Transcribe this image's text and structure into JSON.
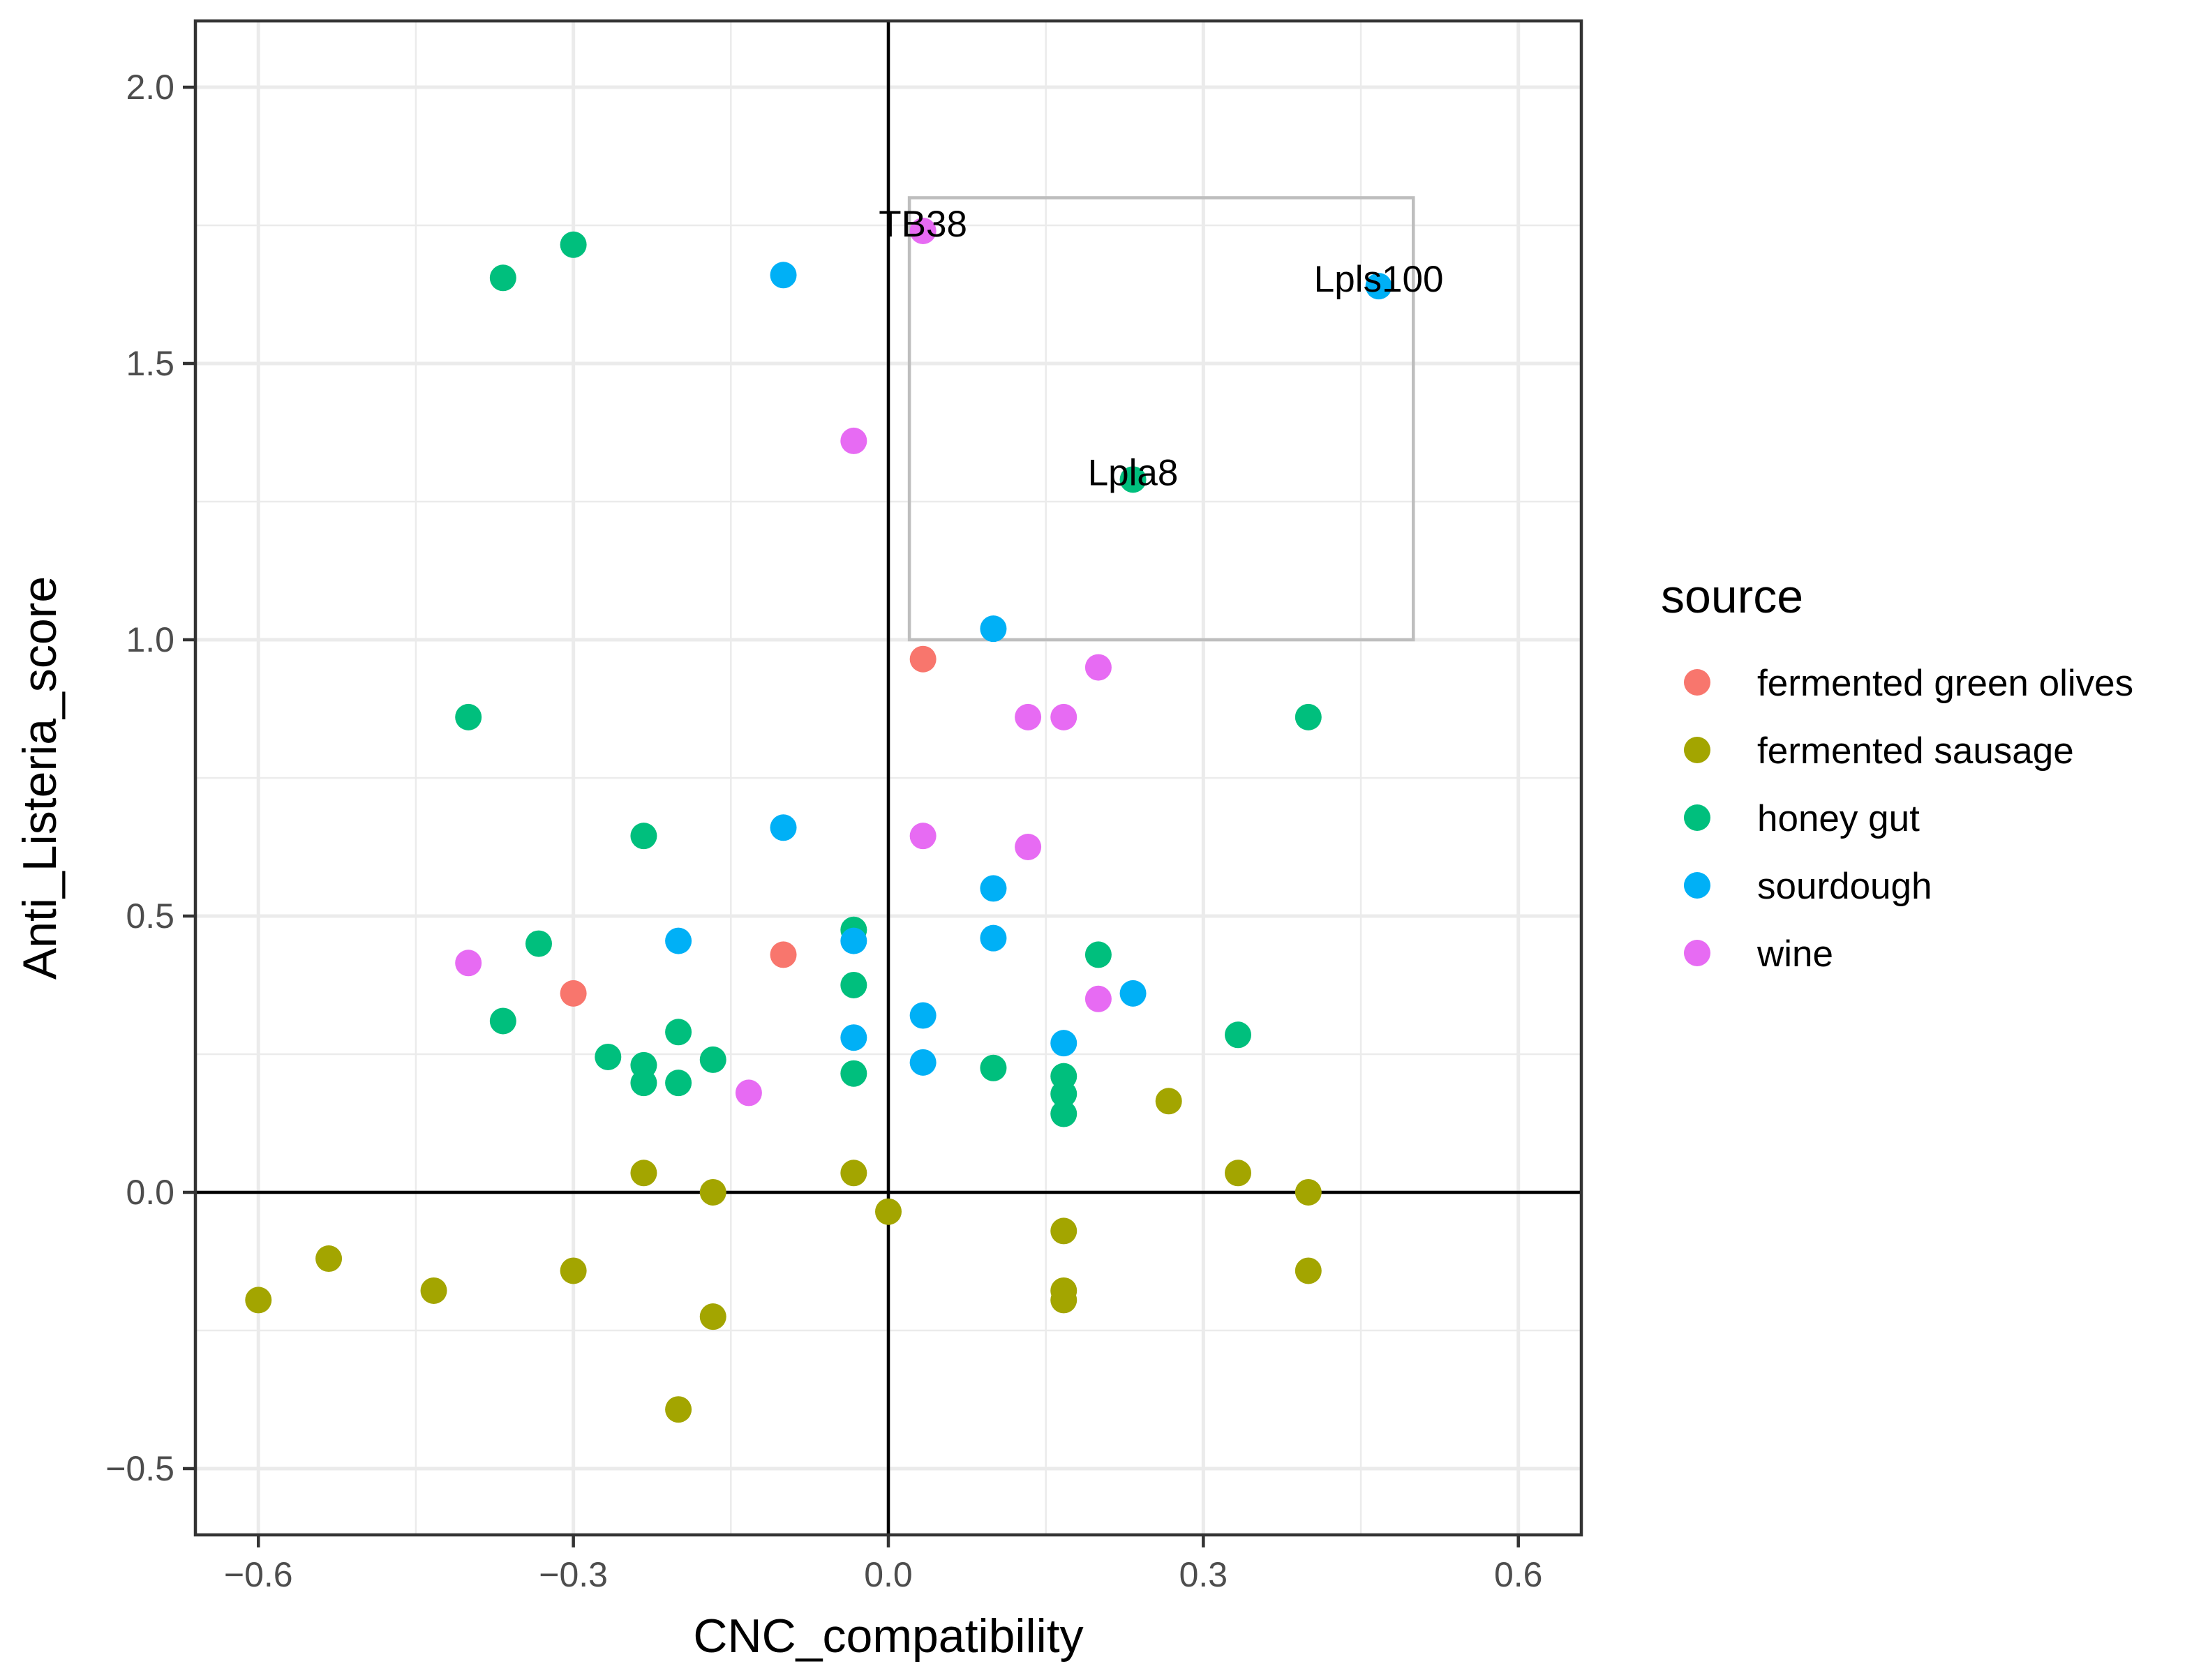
{
  "chart_data": {
    "type": "scatter",
    "xlabel": "CNC_compatibility",
    "ylabel": "Anti_Listeria_score",
    "xlim": [
      -0.66,
      0.66
    ],
    "ylim": [
      -0.62,
      2.12
    ],
    "xticks": [
      -0.6,
      -0.3,
      0.0,
      0.3,
      0.6
    ],
    "xtick_labels": [
      "−0.6",
      "−0.3",
      "0.0",
      "0.3",
      "0.6"
    ],
    "yticks": [
      -0.5,
      0.0,
      0.5,
      1.0,
      1.5,
      2.0
    ],
    "ytick_labels": [
      "−0.5",
      "0.0",
      "0.5",
      "1.0",
      "1.5",
      "2.0"
    ],
    "grid": true,
    "reference_lines": {
      "x": 0,
      "y": 0
    },
    "highlight_box": {
      "x": [
        0.02,
        0.5
      ],
      "y": [
        1.0,
        1.8
      ]
    },
    "legend": {
      "title": "source",
      "position": "right"
    },
    "series": [
      {
        "name": "fermented green olives",
        "color": "#F8766D",
        "points": [
          [
            -0.3,
            0.36
          ],
          [
            -0.1,
            0.43
          ],
          [
            0.033,
            0.965
          ]
        ]
      },
      {
        "name": "fermented sausage",
        "color": "#A3A500",
        "points": [
          [
            -0.6,
            -0.195
          ],
          [
            -0.533,
            -0.12
          ],
          [
            -0.433,
            -0.178
          ],
          [
            -0.3,
            -0.142
          ],
          [
            -0.233,
            0.035
          ],
          [
            -0.2,
            -0.393
          ],
          [
            -0.167,
            0.0
          ],
          [
            -0.167,
            -0.225
          ],
          [
            -0.033,
            0.035
          ],
          [
            0.0,
            -0.035
          ],
          [
            0.167,
            -0.178
          ],
          [
            0.167,
            -0.195
          ],
          [
            0.167,
            -0.07
          ],
          [
            0.267,
            0.165
          ],
          [
            0.333,
            0.035
          ],
          [
            0.4,
            0.0
          ],
          [
            0.4,
            -0.142
          ]
        ]
      },
      {
        "name": "honey gut",
        "color": "#00BF7D",
        "points": [
          [
            -0.367,
            1.655
          ],
          [
            -0.3,
            1.715
          ],
          [
            -0.4,
            0.86
          ],
          [
            -0.233,
            0.645
          ],
          [
            -0.333,
            0.45
          ],
          [
            -0.367,
            0.31
          ],
          [
            -0.267,
            0.245
          ],
          [
            -0.233,
            0.23
          ],
          [
            -0.233,
            0.198
          ],
          [
            -0.2,
            0.29
          ],
          [
            -0.2,
            0.198
          ],
          [
            -0.167,
            0.24
          ],
          [
            -0.033,
            0.475
          ],
          [
            -0.033,
            0.375
          ],
          [
            -0.033,
            0.215
          ],
          [
            0.1,
            0.225
          ],
          [
            0.167,
            0.21
          ],
          [
            0.167,
            0.178
          ],
          [
            0.167,
            0.142
          ],
          [
            0.2,
            0.43
          ],
          [
            0.233,
            1.29
          ],
          [
            0.333,
            0.285
          ],
          [
            0.4,
            0.86
          ]
        ]
      },
      {
        "name": "sourdough",
        "color": "#00B0F6",
        "points": [
          [
            -0.1,
            1.66
          ],
          [
            -0.1,
            0.66
          ],
          [
            -0.2,
            0.455
          ],
          [
            -0.033,
            0.455
          ],
          [
            -0.033,
            0.28
          ],
          [
            0.033,
            0.32
          ],
          [
            0.033,
            0.235
          ],
          [
            0.1,
            1.02
          ],
          [
            0.1,
            0.55
          ],
          [
            0.1,
            0.46
          ],
          [
            0.167,
            0.27
          ],
          [
            0.233,
            0.36
          ],
          [
            0.467,
            1.64
          ]
        ]
      },
      {
        "name": "wine",
        "color": "#E76BF3",
        "points": [
          [
            -0.4,
            0.415
          ],
          [
            -0.133,
            0.18
          ],
          [
            -0.033,
            1.36
          ],
          [
            0.033,
            1.74
          ],
          [
            0.033,
            0.645
          ],
          [
            0.133,
            0.86
          ],
          [
            0.133,
            0.625
          ],
          [
            0.167,
            0.86
          ],
          [
            0.2,
            0.95
          ],
          [
            0.2,
            0.35
          ]
        ]
      }
    ],
    "annotations": [
      {
        "text": "TB38",
        "x": 0.033,
        "y": 1.74
      },
      {
        "text": "Lpls100",
        "x": 0.467,
        "y": 1.64
      },
      {
        "text": "Lpla8",
        "x": 0.233,
        "y": 1.29
      }
    ]
  }
}
